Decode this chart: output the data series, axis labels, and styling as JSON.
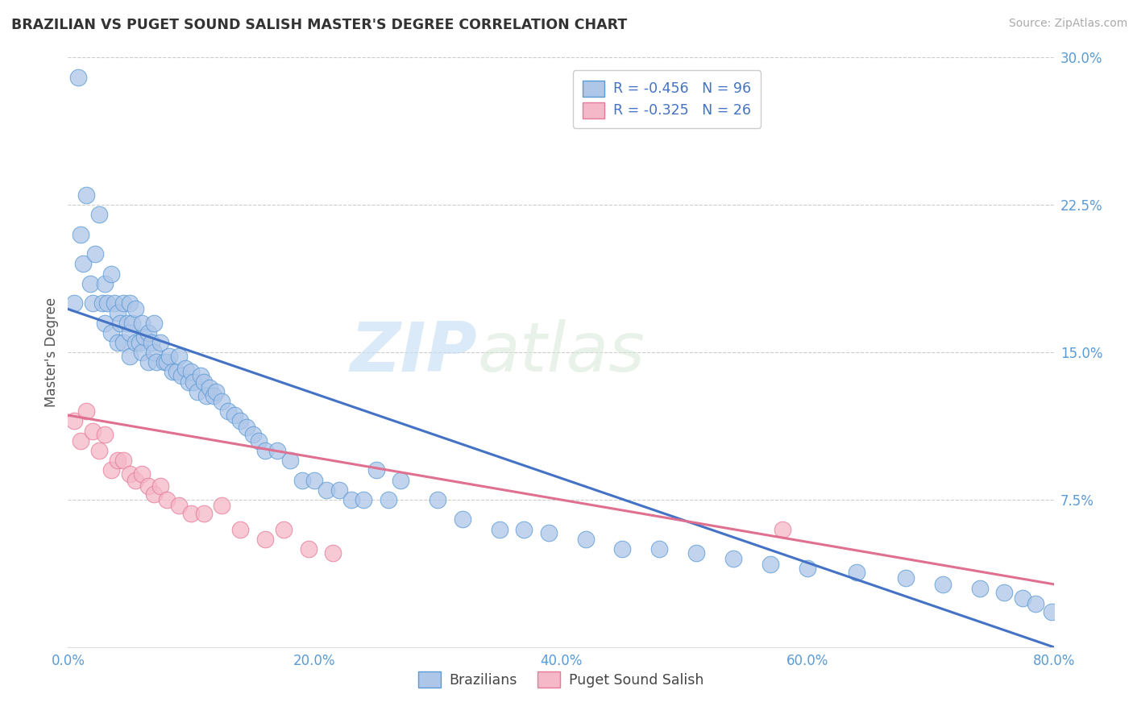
{
  "title": "BRAZILIAN VS PUGET SOUND SALISH MASTER'S DEGREE CORRELATION CHART",
  "source_text": "Source: ZipAtlas.com",
  "ylabel": "Master's Degree",
  "xlim": [
    0.0,
    0.8
  ],
  "ylim": [
    0.0,
    0.3
  ],
  "xtick_vals": [
    0.0,
    0.2,
    0.4,
    0.6,
    0.8
  ],
  "xtick_labels": [
    "0.0%",
    "20.0%",
    "40.0%",
    "60.0%",
    "80.0%"
  ],
  "ytick_vals": [
    0.0,
    0.075,
    0.15,
    0.225,
    0.3
  ],
  "ytick_labels": [
    "",
    "7.5%",
    "15.0%",
    "22.5%",
    "30.0%"
  ],
  "blue_R": -0.456,
  "blue_N": 96,
  "pink_R": -0.325,
  "pink_N": 26,
  "blue_color": "#aec6e8",
  "pink_color": "#f4b8c8",
  "blue_edge_color": "#5b9bd5",
  "pink_edge_color": "#e8799a",
  "blue_line_color": "#4472c4",
  "pink_line_color": "#e07090",
  "tick_label_color": "#5b9bd5",
  "legend_label_blue": "Brazilians",
  "legend_label_pink": "Puget Sound Salish",
  "watermark_zip": "ZIP",
  "watermark_atlas": "atlas",
  "blue_line_x0": 0.0,
  "blue_line_y0": 0.172,
  "blue_line_x1": 0.8,
  "blue_line_y1": 0.0,
  "pink_line_x0": 0.0,
  "pink_line_y0": 0.118,
  "pink_line_x1": 0.8,
  "pink_line_y1": 0.032,
  "blue_x": [
    0.005,
    0.008,
    0.01,
    0.012,
    0.015,
    0.018,
    0.02,
    0.022,
    0.025,
    0.028,
    0.03,
    0.03,
    0.032,
    0.035,
    0.035,
    0.038,
    0.04,
    0.04,
    0.042,
    0.045,
    0.045,
    0.048,
    0.05,
    0.05,
    0.05,
    0.052,
    0.055,
    0.055,
    0.058,
    0.06,
    0.06,
    0.062,
    0.065,
    0.065,
    0.068,
    0.07,
    0.07,
    0.072,
    0.075,
    0.078,
    0.08,
    0.082,
    0.085,
    0.088,
    0.09,
    0.092,
    0.095,
    0.098,
    0.1,
    0.102,
    0.105,
    0.108,
    0.11,
    0.112,
    0.115,
    0.118,
    0.12,
    0.125,
    0.13,
    0.135,
    0.14,
    0.145,
    0.15,
    0.155,
    0.16,
    0.17,
    0.18,
    0.19,
    0.2,
    0.21,
    0.22,
    0.23,
    0.24,
    0.25,
    0.26,
    0.27,
    0.3,
    0.32,
    0.35,
    0.37,
    0.39,
    0.42,
    0.45,
    0.48,
    0.51,
    0.54,
    0.57,
    0.6,
    0.64,
    0.68,
    0.71,
    0.74,
    0.76,
    0.775,
    0.785,
    0.798
  ],
  "blue_y": [
    0.175,
    0.29,
    0.21,
    0.195,
    0.23,
    0.185,
    0.175,
    0.2,
    0.22,
    0.175,
    0.165,
    0.185,
    0.175,
    0.19,
    0.16,
    0.175,
    0.17,
    0.155,
    0.165,
    0.175,
    0.155,
    0.165,
    0.175,
    0.16,
    0.148,
    0.165,
    0.155,
    0.172,
    0.155,
    0.165,
    0.15,
    0.158,
    0.16,
    0.145,
    0.155,
    0.15,
    0.165,
    0.145,
    0.155,
    0.145,
    0.145,
    0.148,
    0.14,
    0.14,
    0.148,
    0.138,
    0.142,
    0.135,
    0.14,
    0.135,
    0.13,
    0.138,
    0.135,
    0.128,
    0.132,
    0.128,
    0.13,
    0.125,
    0.12,
    0.118,
    0.115,
    0.112,
    0.108,
    0.105,
    0.1,
    0.1,
    0.095,
    0.085,
    0.085,
    0.08,
    0.08,
    0.075,
    0.075,
    0.09,
    0.075,
    0.085,
    0.075,
    0.065,
    0.06,
    0.06,
    0.058,
    0.055,
    0.05,
    0.05,
    0.048,
    0.045,
    0.042,
    0.04,
    0.038,
    0.035,
    0.032,
    0.03,
    0.028,
    0.025,
    0.022,
    0.018
  ],
  "pink_x": [
    0.005,
    0.01,
    0.015,
    0.02,
    0.025,
    0.03,
    0.035,
    0.04,
    0.045,
    0.05,
    0.055,
    0.06,
    0.065,
    0.07,
    0.075,
    0.08,
    0.09,
    0.1,
    0.11,
    0.125,
    0.14,
    0.16,
    0.175,
    0.195,
    0.215,
    0.58
  ],
  "pink_y": [
    0.115,
    0.105,
    0.12,
    0.11,
    0.1,
    0.108,
    0.09,
    0.095,
    0.095,
    0.088,
    0.085,
    0.088,
    0.082,
    0.078,
    0.082,
    0.075,
    0.072,
    0.068,
    0.068,
    0.072,
    0.06,
    0.055,
    0.06,
    0.05,
    0.048,
    0.06
  ]
}
